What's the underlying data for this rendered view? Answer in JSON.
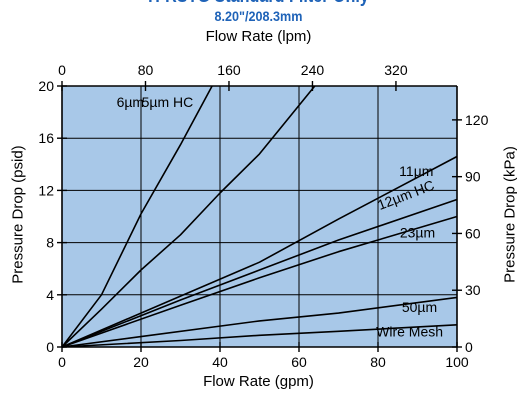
{
  "title": "H-RSTG Standard Filter Only",
  "subtitle": "8.20\"/208.3mm",
  "chart_data": {
    "type": "line",
    "title": "H-RSTG Standard Filter Only",
    "subtitle": "8.20\"/208.3mm",
    "xlabel": "Flow Rate  (gpm)",
    "ylabel": "Pressure Drop  (psid)",
    "x2label": "Flow Rate  (lpm)",
    "y2label": "Pressure Drop  (kPa)",
    "xlim": [
      0,
      100
    ],
    "ylim": [
      0,
      20
    ],
    "x2lim": [
      0,
      378.5
    ],
    "y2lim": [
      0,
      137.9
    ],
    "xticks": [
      0,
      20,
      40,
      60,
      80,
      100
    ],
    "yticks": [
      0,
      4,
      8,
      12,
      16,
      20
    ],
    "x2ticks": [
      0,
      80,
      160,
      240,
      320
    ],
    "y2ticks": [
      0,
      30,
      60,
      90,
      120
    ],
    "grid": true,
    "legend": "none",
    "colors": {
      "plot_bg": "#a8c8e8",
      "line": "#000000",
      "title": "#1f63b8"
    },
    "series": [
      {
        "name": "6µm",
        "x": [
          0,
          10,
          20,
          30,
          38
        ],
        "y": [
          0,
          4.0,
          10.2,
          15.5,
          20
        ]
      },
      {
        "name": "5µm HC",
        "x": [
          0,
          10,
          20,
          30,
          40,
          50,
          64
        ],
        "y": [
          0,
          2.9,
          5.9,
          8.6,
          11.8,
          14.8,
          20
        ]
      },
      {
        "name": "11µm",
        "x": [
          0,
          30,
          50,
          70,
          100
        ],
        "y": [
          0,
          3.9,
          6.5,
          9.8,
          14.6
        ]
      },
      {
        "name": "12µm HC",
        "x": [
          0,
          30,
          50,
          70,
          100
        ],
        "y": [
          0,
          3.6,
          5.9,
          8.2,
          11.3
        ]
      },
      {
        "name": "23µm",
        "x": [
          0,
          30,
          50,
          70,
          100
        ],
        "y": [
          0,
          3.2,
          5.3,
          7.3,
          10.0
        ]
      },
      {
        "name": "50µm",
        "x": [
          0,
          20,
          50,
          70,
          100
        ],
        "y": [
          0,
          0.8,
          2.0,
          2.6,
          3.8
        ]
      },
      {
        "name": "Wire Mesh",
        "x": [
          0,
          30,
          50,
          70,
          100
        ],
        "y": [
          0,
          0.5,
          0.9,
          1.2,
          1.7
        ]
      }
    ],
    "annotations": [
      {
        "text": "6µm",
        "x": 17.3,
        "y": 18.4
      },
      {
        "text": "5µm HC",
        "x": 26.7,
        "y": 18.4
      },
      {
        "text": "11µm",
        "x": 89.7,
        "y": 13.1
      },
      {
        "text": "12µm HC",
        "x": 87.5,
        "y": 11.3,
        "angle": -21
      },
      {
        "text": "23µm",
        "x": 90.0,
        "y": 8.4
      },
      {
        "text": "50µm",
        "x": 90.5,
        "y": 2.7
      },
      {
        "text": "Wire Mesh",
        "x": 88.0,
        "y": 0.8
      }
    ]
  }
}
